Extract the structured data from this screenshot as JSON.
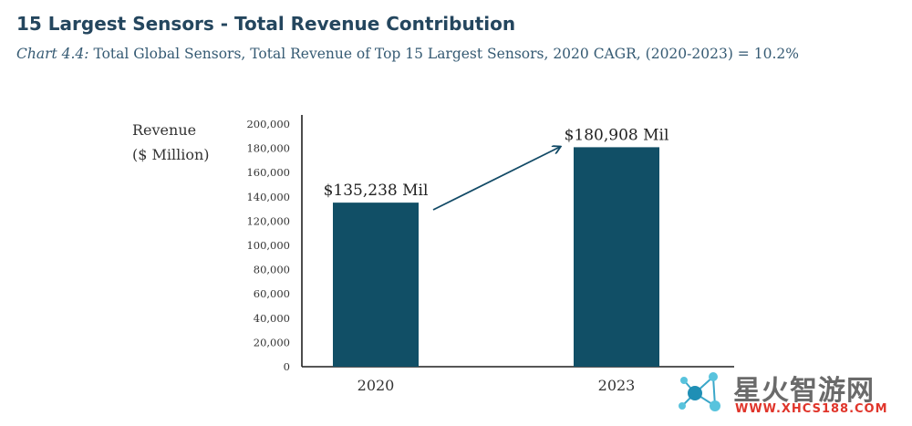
{
  "header": {
    "title": "15 Largest Sensors - Total Revenue Contribution",
    "subtitle_lead": "Chart 4.4:",
    "subtitle_rest": " Total Global Sensors, Total Revenue of Top 15 Largest Sensors, 2020 CAGR, (2020-2023) = 10.2%"
  },
  "chart_data": {
    "type": "bar",
    "title": "15 Largest Sensors - Total Revenue Contribution",
    "categories": [
      "2020",
      "2023"
    ],
    "values": [
      135238,
      180908
    ],
    "data_labels": [
      "$135,238 Mil",
      "$180,908 Mil"
    ],
    "ylabel_line1": "Revenue",
    "ylabel_line2": "($ Million)",
    "xlabel": "",
    "ylim": [
      0,
      200000
    ],
    "yticks": [
      0,
      20000,
      40000,
      60000,
      80000,
      100000,
      120000,
      140000,
      160000,
      180000,
      200000
    ],
    "ytick_labels": [
      "0",
      "20,000",
      "40,000",
      "60,000",
      "80,000",
      "100,000",
      "120,000",
      "140,000",
      "160,000",
      "180,000",
      "200,000"
    ],
    "bar_color": "#114f66",
    "grid": false,
    "annotation": "growth arrow from 2020 to 2023"
  },
  "watermark": {
    "text": "星火智游网",
    "url": "WWW.XHCS188.COM",
    "icon": "network-logo-icon"
  }
}
